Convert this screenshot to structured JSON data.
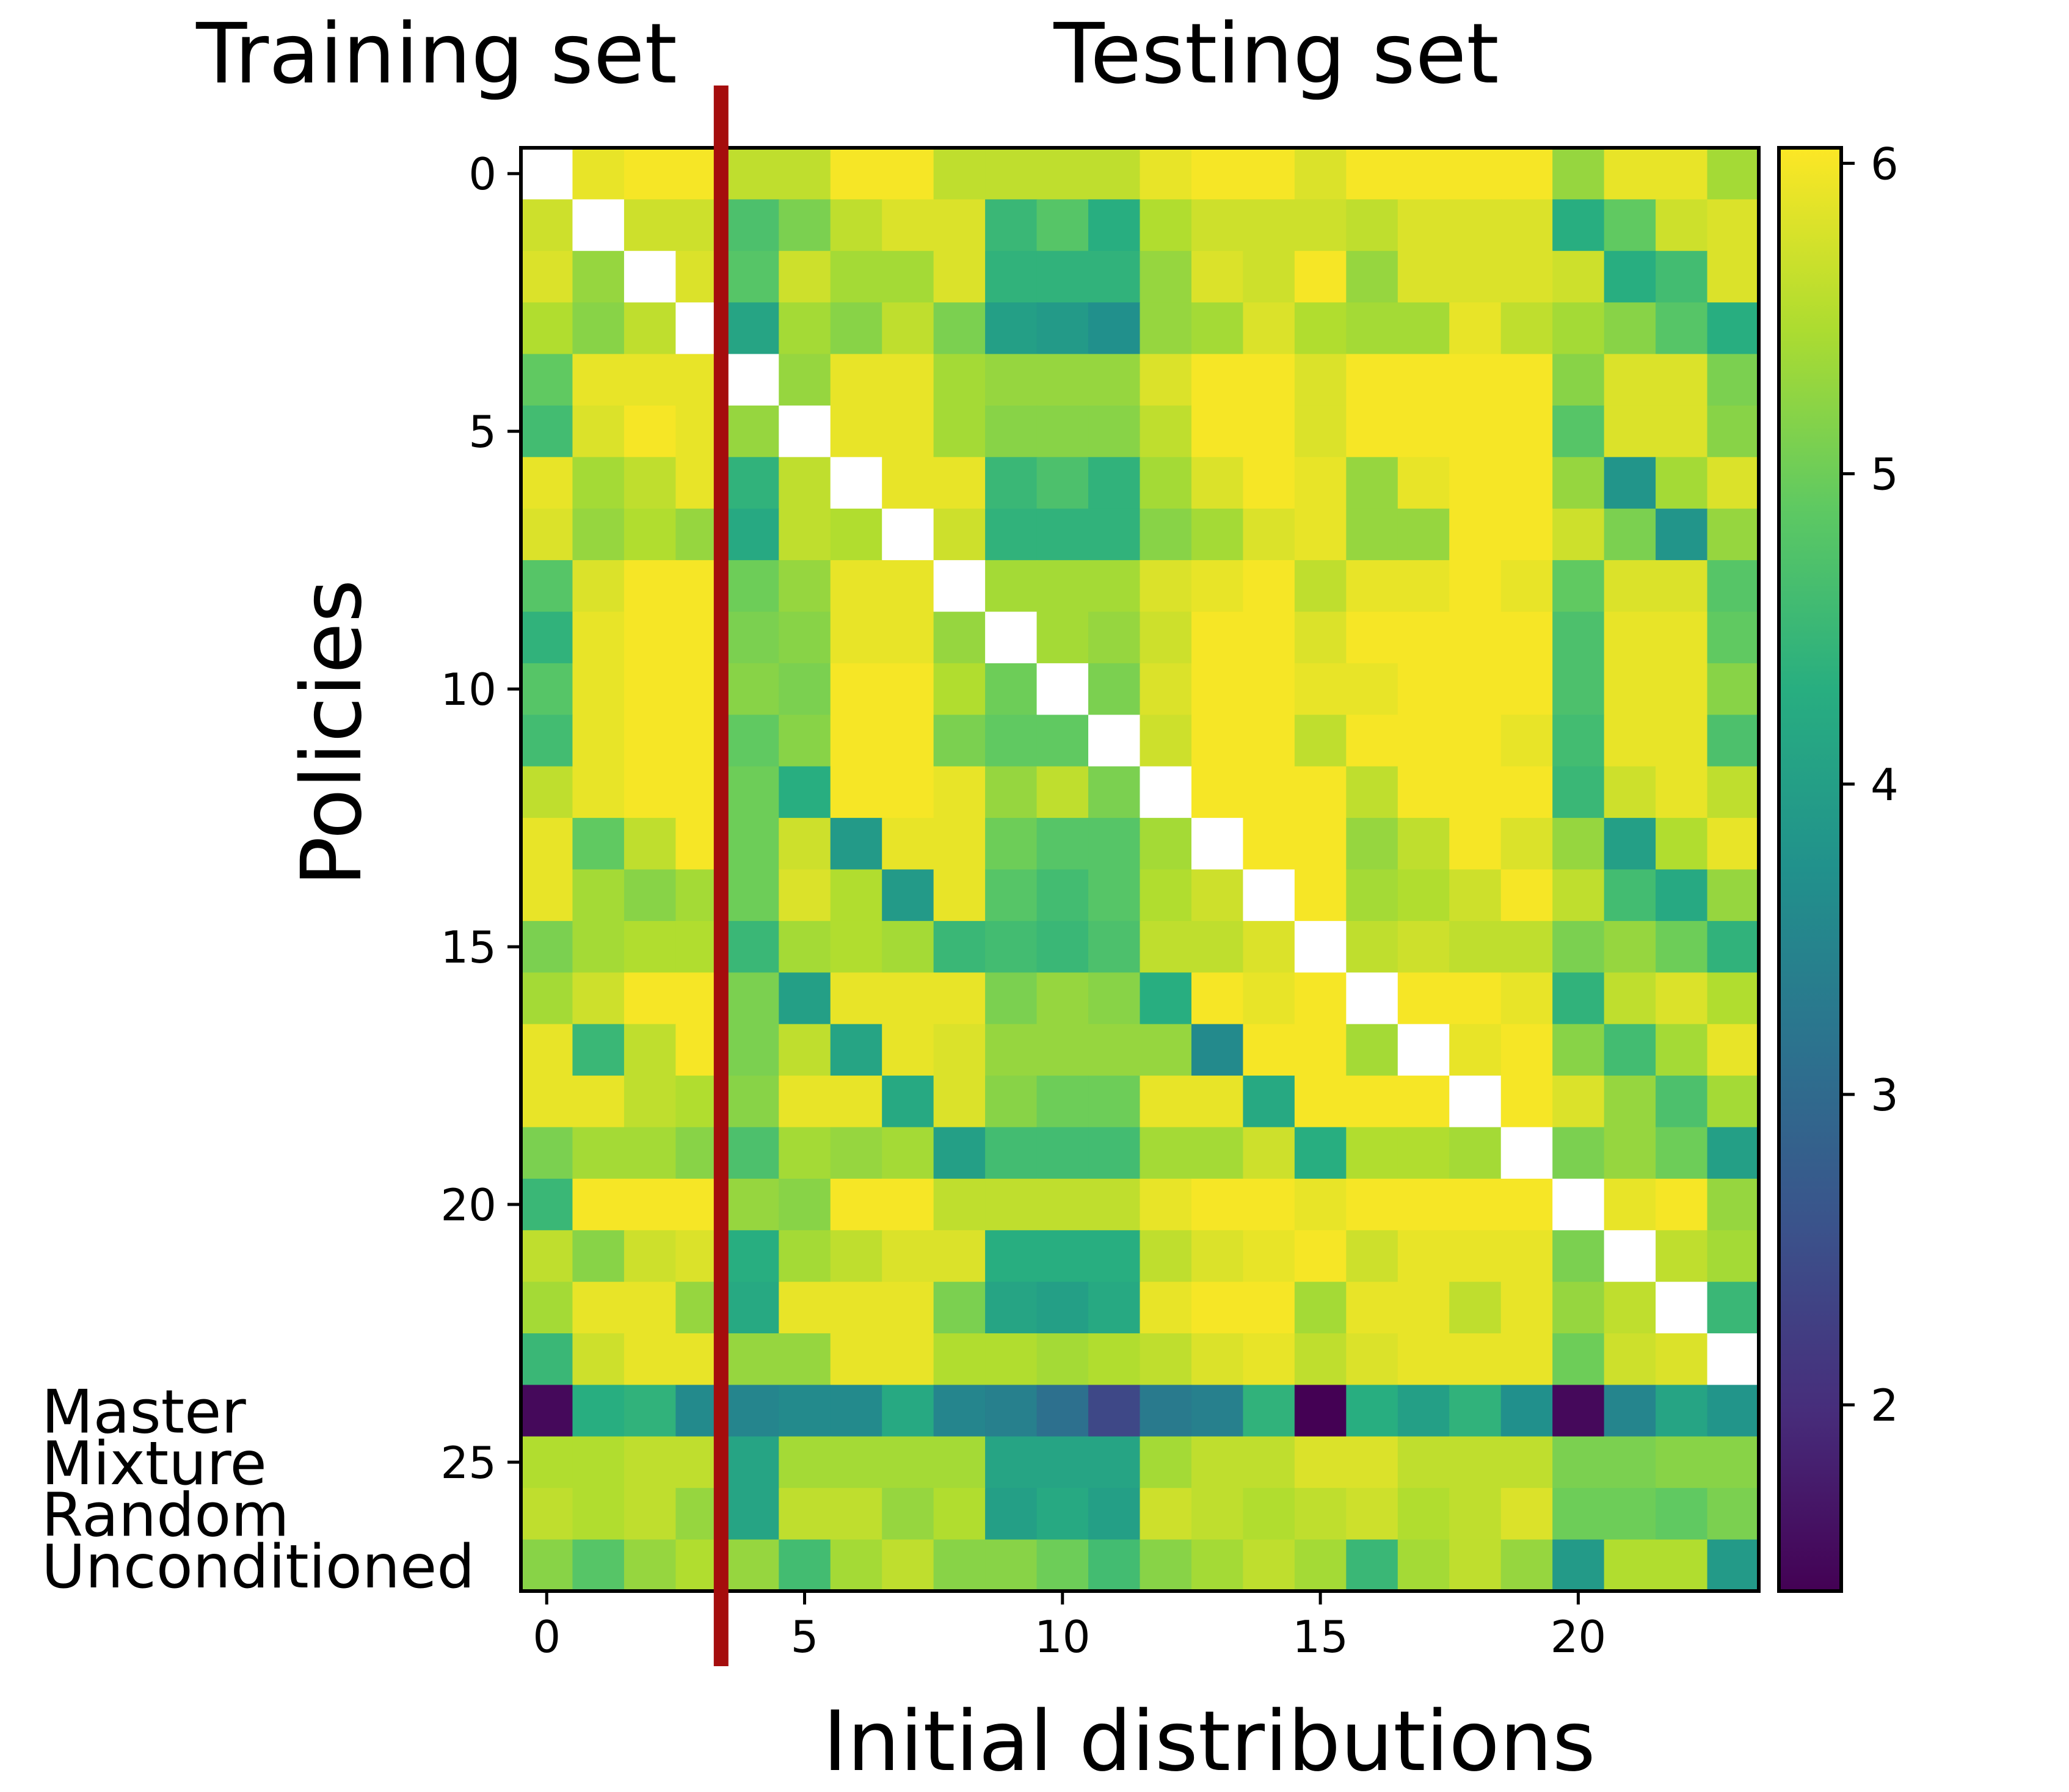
{
  "chart_data": {
    "type": "heatmap",
    "xlabel": "Initial distributions",
    "ylabel": "Policies",
    "annotations": {
      "training_set_label": "Training set",
      "testing_set_label": "Testing set",
      "split_after_column": 3,
      "split_line_color": "#a50d0d"
    },
    "x_ticks": [
      0,
      5,
      10,
      15,
      20
    ],
    "y_ticks": [
      0,
      5,
      10,
      15,
      20,
      25
    ],
    "row_labels": [
      {
        "row": 24,
        "text": "Master"
      },
      {
        "row": 25,
        "text": "Mixture"
      },
      {
        "row": 26,
        "text": "Random"
      },
      {
        "row": 27,
        "text": "Unconditioned"
      }
    ],
    "colorbar": {
      "min": 1.4,
      "max": 6.05,
      "ticks": [
        2,
        3,
        4,
        5,
        6
      ],
      "colormap": "viridis"
    },
    "nan_color": "#ffffff",
    "shape": [
      28,
      24
    ],
    "values": [
      [
        null,
        5.9,
        6.0,
        6.0,
        5.6,
        5.6,
        6.0,
        6.0,
        5.6,
        5.6,
        5.6,
        5.6,
        5.9,
        6.0,
        6.0,
        5.8,
        6.0,
        6.0,
        6.0,
        6.0,
        5.3,
        5.9,
        5.9,
        5.4
      ],
      [
        5.7,
        null,
        5.7,
        5.7,
        4.7,
        5.1,
        5.6,
        5.8,
        5.8,
        4.5,
        4.8,
        4.3,
        5.5,
        5.7,
        5.7,
        5.7,
        5.6,
        5.8,
        5.8,
        5.8,
        4.3,
        4.9,
        5.7,
        5.8
      ],
      [
        5.8,
        5.3,
        null,
        5.8,
        4.8,
        5.7,
        5.4,
        5.4,
        5.8,
        4.4,
        4.4,
        4.4,
        5.3,
        5.8,
        5.7,
        6.0,
        5.3,
        5.8,
        5.8,
        5.8,
        5.7,
        4.3,
        4.6,
        5.8
      ],
      [
        5.5,
        5.2,
        5.6,
        null,
        4.1,
        5.4,
        5.2,
        5.6,
        5.1,
        4.0,
        3.9,
        3.7,
        5.3,
        5.4,
        5.8,
        5.5,
        5.4,
        5.4,
        5.9,
        5.6,
        5.4,
        5.2,
        4.8,
        4.3
      ],
      [
        4.9,
        5.9,
        5.9,
        5.9,
        null,
        5.3,
        5.9,
        5.9,
        5.4,
        5.3,
        5.3,
        5.3,
        5.8,
        6.0,
        6.0,
        5.8,
        6.0,
        6.0,
        6.0,
        6.0,
        5.2,
        5.8,
        5.8,
        5.1
      ],
      [
        4.6,
        5.8,
        6.0,
        5.9,
        5.3,
        null,
        5.9,
        5.9,
        5.4,
        5.2,
        5.2,
        5.2,
        5.6,
        6.0,
        6.0,
        5.8,
        6.0,
        6.0,
        6.0,
        6.0,
        4.8,
        5.8,
        5.8,
        5.2
      ],
      [
        5.9,
        5.4,
        5.6,
        5.9,
        4.4,
        5.6,
        null,
        5.9,
        5.9,
        4.5,
        4.7,
        4.4,
        5.4,
        5.8,
        6.0,
        5.9,
        5.3,
        5.9,
        6.0,
        6.0,
        5.3,
        3.8,
        5.4,
        5.8
      ],
      [
        5.8,
        5.3,
        5.5,
        5.3,
        4.2,
        5.6,
        5.5,
        null,
        5.7,
        4.4,
        4.4,
        4.4,
        5.2,
        5.4,
        5.8,
        5.9,
        5.3,
        5.3,
        6.0,
        6.0,
        5.7,
        5.1,
        3.8,
        5.3
      ],
      [
        4.8,
        5.8,
        6.0,
        6.0,
        5.0,
        5.3,
        5.9,
        5.9,
        null,
        5.4,
        5.4,
        5.4,
        5.8,
        5.9,
        6.0,
        5.6,
        5.9,
        5.9,
        6.0,
        5.9,
        4.9,
        5.8,
        5.8,
        4.8
      ],
      [
        4.4,
        5.9,
        6.0,
        6.0,
        5.1,
        5.2,
        5.9,
        5.9,
        5.3,
        null,
        5.4,
        5.3,
        5.7,
        6.0,
        6.0,
        5.8,
        6.0,
        6.0,
        6.0,
        6.0,
        4.7,
        5.9,
        5.9,
        4.9
      ],
      [
        4.8,
        5.9,
        6.0,
        6.0,
        5.2,
        5.1,
        6.0,
        6.0,
        5.5,
        5.0,
        null,
        5.1,
        5.8,
        6.0,
        6.0,
        5.9,
        5.9,
        6.0,
        6.0,
        6.0,
        4.7,
        5.9,
        5.9,
        5.2
      ],
      [
        4.6,
        5.9,
        6.0,
        6.0,
        4.9,
        5.2,
        6.0,
        6.0,
        5.1,
        4.9,
        4.9,
        null,
        5.7,
        6.0,
        6.0,
        5.6,
        6.0,
        6.0,
        6.0,
        5.9,
        4.6,
        5.9,
        5.9,
        4.7
      ],
      [
        5.6,
        5.9,
        6.0,
        6.0,
        5.0,
        4.3,
        6.0,
        6.0,
        5.9,
        5.3,
        5.6,
        5.1,
        null,
        6.0,
        6.0,
        6.0,
        5.6,
        6.0,
        6.0,
        6.0,
        4.5,
        5.7,
        5.9,
        5.6
      ],
      [
        5.9,
        4.9,
        5.6,
        6.0,
        5.0,
        5.7,
        3.9,
        5.9,
        5.9,
        5.0,
        4.8,
        4.8,
        5.4,
        null,
        6.0,
        6.0,
        5.3,
        5.6,
        6.0,
        5.8,
        5.3,
        4.0,
        5.5,
        5.9
      ],
      [
        5.9,
        5.4,
        5.2,
        5.4,
        5.0,
        5.8,
        5.5,
        3.9,
        5.9,
        4.8,
        4.6,
        4.8,
        5.5,
        5.7,
        null,
        6.0,
        5.4,
        5.5,
        5.7,
        6.0,
        5.6,
        4.6,
        4.2,
        5.3
      ],
      [
        5.1,
        5.4,
        5.5,
        5.5,
        4.5,
        5.4,
        5.5,
        5.4,
        4.5,
        4.6,
        4.5,
        4.7,
        5.6,
        5.6,
        5.8,
        null,
        5.6,
        5.7,
        5.6,
        5.6,
        5.1,
        5.3,
        5.0,
        4.4
      ],
      [
        5.4,
        5.7,
        6.0,
        6.0,
        5.1,
        4.0,
        5.9,
        5.9,
        5.9,
        5.1,
        5.3,
        5.2,
        4.3,
        6.0,
        5.9,
        6.0,
        null,
        6.0,
        6.0,
        5.9,
        4.4,
        5.6,
        5.8,
        5.5
      ],
      [
        5.9,
        4.5,
        5.6,
        6.0,
        5.1,
        5.6,
        4.1,
        5.9,
        5.8,
        5.3,
        5.3,
        5.3,
        5.3,
        3.6,
        6.0,
        6.0,
        5.4,
        null,
        5.9,
        6.0,
        5.2,
        4.6,
        5.4,
        5.9
      ],
      [
        5.9,
        5.9,
        5.6,
        5.5,
        5.2,
        5.9,
        5.9,
        4.2,
        5.8,
        5.2,
        5.0,
        5.0,
        5.9,
        5.9,
        4.2,
        6.0,
        6.0,
        6.0,
        null,
        6.0,
        5.8,
        5.3,
        4.7,
        5.4
      ],
      [
        5.1,
        5.4,
        5.4,
        5.2,
        4.7,
        5.4,
        5.3,
        5.4,
        4.0,
        4.6,
        4.6,
        4.6,
        5.4,
        5.4,
        5.7,
        4.3,
        5.5,
        5.5,
        5.4,
        null,
        5.1,
        5.3,
        5.0,
        4.0
      ],
      [
        4.5,
        6.0,
        6.0,
        6.0,
        5.3,
        5.2,
        6.0,
        6.0,
        5.6,
        5.6,
        5.6,
        5.6,
        5.9,
        6.0,
        6.0,
        5.9,
        6.0,
        6.0,
        6.0,
        6.0,
        null,
        5.9,
        6.0,
        5.3
      ],
      [
        5.6,
        5.2,
        5.7,
        5.8,
        4.3,
        5.4,
        5.6,
        5.8,
        5.8,
        4.3,
        4.3,
        4.3,
        5.6,
        5.8,
        5.9,
        6.0,
        5.7,
        5.9,
        5.9,
        5.9,
        5.1,
        null,
        5.6,
        5.4
      ],
      [
        5.4,
        5.9,
        5.9,
        5.3,
        4.2,
        5.9,
        5.9,
        5.9,
        5.1,
        4.1,
        4.0,
        4.2,
        5.9,
        6.0,
        6.0,
        5.4,
        5.9,
        5.9,
        5.6,
        5.9,
        5.3,
        5.6,
        null,
        4.5
      ],
      [
        4.5,
        5.7,
        5.9,
        5.9,
        5.3,
        5.3,
        5.9,
        5.9,
        5.5,
        5.5,
        5.4,
        5.5,
        5.6,
        5.8,
        5.9,
        5.6,
        5.8,
        5.9,
        5.9,
        5.9,
        5.0,
        5.7,
        5.8,
        null
      ],
      [
        1.5,
        4.3,
        4.4,
        3.6,
        3.5,
        3.6,
        3.6,
        4.2,
        3.5,
        3.4,
        3.1,
        2.4,
        3.3,
        3.4,
        4.4,
        1.4,
        4.3,
        4.0,
        4.4,
        3.7,
        1.5,
        3.5,
        4.1,
        3.8
      ],
      [
        5.5,
        5.5,
        5.6,
        5.6,
        4.1,
        5.4,
        5.4,
        5.4,
        5.4,
        4.1,
        4.1,
        4.1,
        5.4,
        5.6,
        5.6,
        5.8,
        5.8,
        5.6,
        5.6,
        5.6,
        5.1,
        5.1,
        5.2,
        5.2
      ],
      [
        5.6,
        5.5,
        5.6,
        5.3,
        4.1,
        5.6,
        5.6,
        5.3,
        5.5,
        4.0,
        4.2,
        4.0,
        5.7,
        5.6,
        5.5,
        5.6,
        5.7,
        5.5,
        5.6,
        5.8,
        5.0,
        5.0,
        4.9,
        5.1
      ],
      [
        5.2,
        4.8,
        5.3,
        5.5,
        5.3,
        4.6,
        5.4,
        5.6,
        5.2,
        5.2,
        5.0,
        4.6,
        5.2,
        5.4,
        5.6,
        5.4,
        4.5,
        5.4,
        5.6,
        5.3,
        3.9,
        5.5,
        5.5,
        3.9
      ]
    ]
  }
}
